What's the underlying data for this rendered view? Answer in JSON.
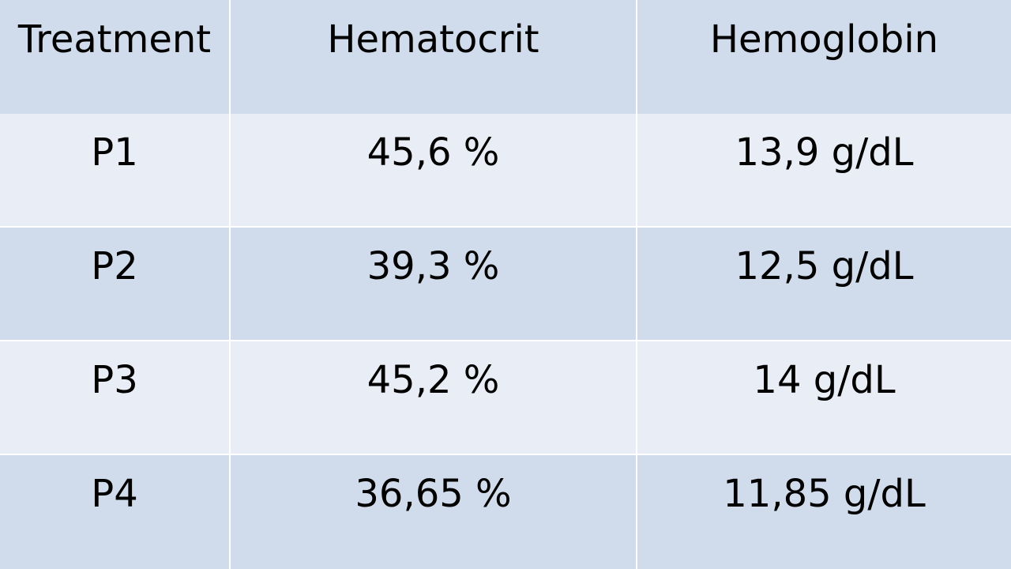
{
  "table": {
    "headers": [
      "Treatment",
      "Hematocrit",
      "Hemoglobin"
    ],
    "rows": [
      [
        "P1",
        "45,6 %",
        "13,9 g/dL"
      ],
      [
        "P2",
        "39,3 %",
        "12,5 g/dL"
      ],
      [
        "P3",
        "45,2 %",
        "14 g/dL"
      ],
      [
        "P4",
        "36,65 %",
        "11,85 g/dL"
      ]
    ]
  },
  "colors": {
    "header_row": "#d0dbec",
    "light_row": "#e9edf5",
    "dark_row": "#d0dbec",
    "grid_line": "#ffffff"
  }
}
